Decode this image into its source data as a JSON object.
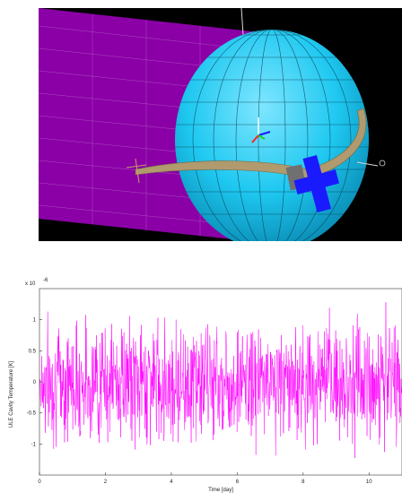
{
  "scene": {
    "background": "#000000",
    "colors": {
      "shroud": "#8a00a6",
      "shroud_grid": "#c06ad0",
      "sphere": "#1ec8f0",
      "sphere_grid": "#0b3a52",
      "ring": "#b09a6e",
      "cross": "#1a1aff",
      "mount": "#707070"
    },
    "icons": [
      "coordinate-triad-icon"
    ]
  },
  "chart_data": {
    "type": "line",
    "title": "",
    "xlabel": "Time [day]",
    "ylabel": "ULE Cavity Temperature [K]",
    "y_multiplier": "x 10",
    "y_multiplier_exponent": "-6",
    "xlim": [
      0,
      11
    ],
    "ylim": [
      -1.5,
      1.5
    ],
    "xticks": [
      "0",
      "2",
      "4",
      "6",
      "8",
      "10"
    ],
    "xtick_values": [
      0,
      2,
      4,
      6,
      8,
      10
    ],
    "yticks": [
      "1",
      "0.5",
      "0",
      "-0.5",
      "-1"
    ],
    "ytick_values": [
      1,
      0.5,
      0,
      -0.5,
      -1
    ],
    "grid": false,
    "series": [
      {
        "color": "#ff00ff",
        "description_values": "dense oscillating noise centred on 0 with amplitude about 1.0e-6 to 1.5e-6 K over 0-11 days",
        "sample_count": 1100,
        "seed": 7,
        "amplitude": 1.0
      }
    ]
  }
}
